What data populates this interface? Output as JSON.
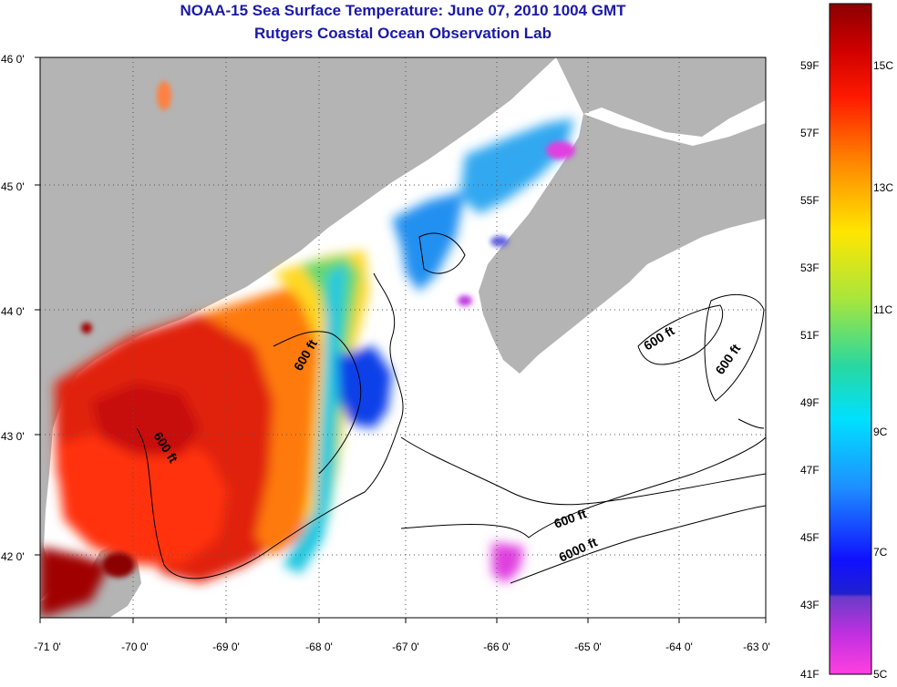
{
  "title": {
    "line1": "NOAA-15 Sea Surface Temperature:  June 07, 2010 1004 GMT",
    "line2": "Rutgers Coastal Ocean Observation Lab"
  },
  "axes": {
    "x_ticks": [
      "-71 0'",
      "-70 0'",
      "-69 0'",
      "-68 0'",
      "-67 0'",
      "-66 0'",
      "-65 0'",
      "-64 0'",
      "-63 0'"
    ],
    "y_ticks": [
      "46 0'",
      "45 0'",
      "44 0'",
      "43 0'",
      "42 0'"
    ]
  },
  "contours": {
    "labels": [
      "600 ft",
      "600 ft",
      "600 ft",
      "600 ft",
      "600 ft",
      "6000 ft"
    ]
  },
  "colorbar": {
    "fahrenheit": [
      "59F",
      "57F",
      "55F",
      "53F",
      "51F",
      "49F",
      "47F",
      "45F",
      "43F",
      "41F"
    ],
    "celsius": [
      "15C",
      "13C",
      "11C",
      "9C",
      "7C",
      "5C"
    ]
  },
  "colors": {
    "land": "#b4b4b4",
    "ocean_nodata": "#ffffff",
    "title": "#1a1aa6",
    "grid": "#555555"
  }
}
